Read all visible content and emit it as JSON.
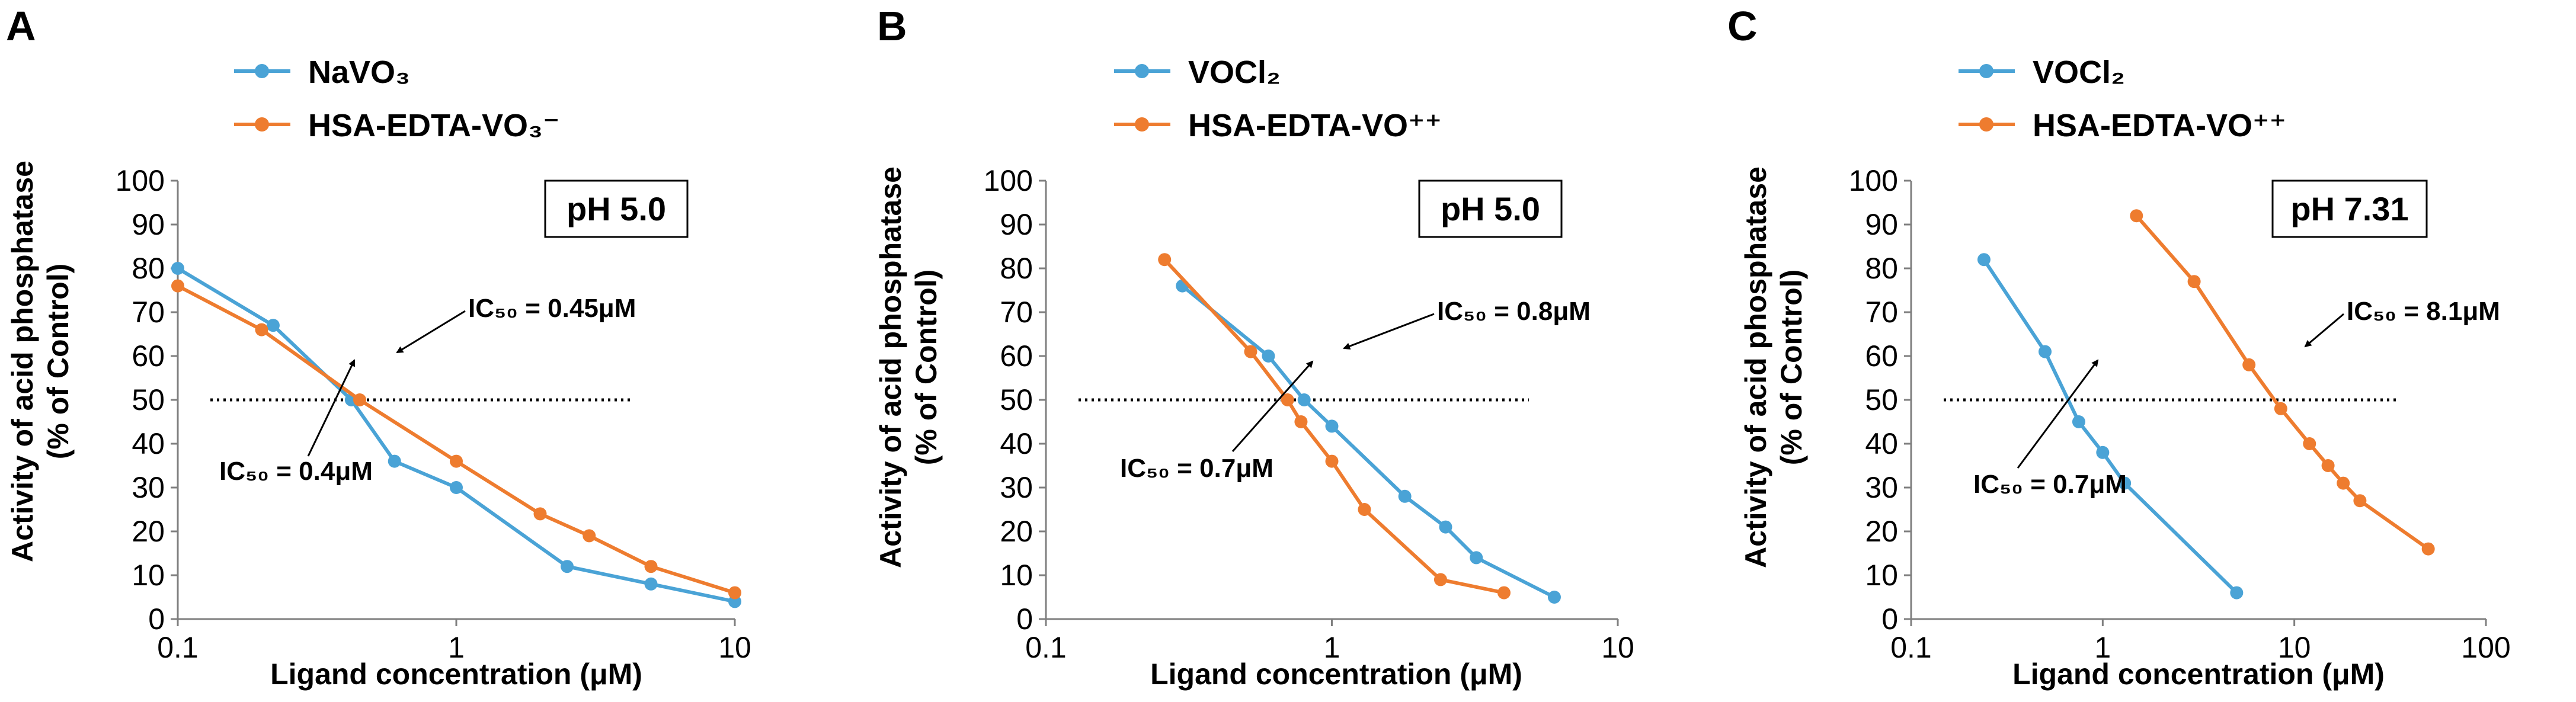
{
  "figure": {
    "colors": {
      "blue": "#4aa3d6",
      "orange": "#ee7c2f"
    }
  },
  "chart_data": [
    {
      "panel": "A",
      "type": "line",
      "xscale": "log",
      "xlim": [
        0.1,
        10
      ],
      "ylim": [
        0,
        100
      ],
      "xticks": [
        {
          "v": 0.1,
          "label": "0.1"
        },
        {
          "v": 1,
          "label": "1"
        },
        {
          "v": 10,
          "label": "10"
        }
      ],
      "yticks": [
        {
          "v": 0,
          "label": "0"
        },
        {
          "v": 10,
          "label": "10"
        },
        {
          "v": 20,
          "label": "20"
        },
        {
          "v": 30,
          "label": "30"
        },
        {
          "v": 40,
          "label": "40"
        },
        {
          "v": 50,
          "label": "50"
        },
        {
          "v": 60,
          "label": "60"
        },
        {
          "v": 70,
          "label": "70"
        },
        {
          "v": 80,
          "label": "80"
        },
        {
          "v": 90,
          "label": "90"
        },
        {
          "v": 100,
          "label": "100"
        }
      ],
      "xlabel": "Ligand concentration (μM)",
      "ylabel": [
        "Activity of acid phosphatase",
        "(% of Control)"
      ],
      "condition": "pH 5.0",
      "reference_line": 50,
      "grid": false,
      "legend_position": "top-left",
      "series": [
        {
          "name": "NaVO₃",
          "color": "blue",
          "x": [
            0.1,
            0.22,
            0.42,
            0.6,
            1,
            2.5,
            5,
            10
          ],
          "y": [
            80,
            67,
            50,
            36,
            30,
            12,
            8,
            4
          ]
        },
        {
          "name": "HSA-EDTA-VO₃⁻",
          "color": "orange",
          "x": [
            0.1,
            0.2,
            0.45,
            1,
            2,
            3,
            5,
            10
          ],
          "y": [
            76,
            66,
            50,
            36,
            24,
            19,
            12,
            6
          ]
        }
      ],
      "annotations": [
        {
          "text": "IC₅₀ = 0.45μM",
          "points_to": [
            0.45,
            50
          ]
        },
        {
          "text": "IC₅₀ = 0.4μM",
          "points_to": [
            0.4,
            50
          ]
        }
      ]
    },
    {
      "panel": "B",
      "type": "line",
      "xscale": "log",
      "xlim": [
        0.1,
        10
      ],
      "ylim": [
        0,
        100
      ],
      "xticks": [
        {
          "v": 0.1,
          "label": "0.1"
        },
        {
          "v": 1,
          "label": "1"
        },
        {
          "v": 10,
          "label": "10"
        }
      ],
      "yticks": [
        {
          "v": 0,
          "label": "0"
        },
        {
          "v": 10,
          "label": "10"
        },
        {
          "v": 20,
          "label": "20"
        },
        {
          "v": 30,
          "label": "30"
        },
        {
          "v": 40,
          "label": "40"
        },
        {
          "v": 50,
          "label": "50"
        },
        {
          "v": 60,
          "label": "60"
        },
        {
          "v": 70,
          "label": "70"
        },
        {
          "v": 80,
          "label": "80"
        },
        {
          "v": 90,
          "label": "90"
        },
        {
          "v": 100,
          "label": "100"
        }
      ],
      "xlabel": "Ligand concentration (μM)",
      "ylabel": [
        "Activity of acid phosphatase",
        "(% of Control)"
      ],
      "condition": "pH 5.0",
      "reference_line": 50,
      "grid": false,
      "legend_position": "top-left",
      "series": [
        {
          "name": "VOCl₂",
          "color": "blue",
          "x": [
            0.3,
            0.6,
            0.8,
            1,
            1.8,
            2.5,
            3.2,
            6
          ],
          "y": [
            76,
            60,
            50,
            44,
            28,
            21,
            14,
            5
          ]
        },
        {
          "name": "HSA-EDTA-VO⁺⁺",
          "color": "orange",
          "x": [
            0.26,
            0.52,
            0.7,
            0.78,
            1,
            1.3,
            2.4,
            4
          ],
          "y": [
            82,
            61,
            50,
            45,
            36,
            25,
            9,
            6
          ]
        }
      ],
      "annotations": [
        {
          "text": "IC₅₀ = 0.8μM",
          "points_to": [
            0.8,
            50
          ]
        },
        {
          "text": "IC₅₀ = 0.7μM",
          "points_to": [
            0.7,
            50
          ]
        }
      ]
    },
    {
      "panel": "C",
      "type": "line",
      "xscale": "log",
      "xlim": [
        0.1,
        100
      ],
      "ylim": [
        0,
        100
      ],
      "xticks": [
        {
          "v": 0.1,
          "label": "0.1"
        },
        {
          "v": 1,
          "label": "1"
        },
        {
          "v": 10,
          "label": "10"
        },
        {
          "v": 100,
          "label": "100"
        }
      ],
      "yticks": [
        {
          "v": 0,
          "label": "0"
        },
        {
          "v": 10,
          "label": "10"
        },
        {
          "v": 20,
          "label": "20"
        },
        {
          "v": 30,
          "label": "30"
        },
        {
          "v": 40,
          "label": "40"
        },
        {
          "v": 50,
          "label": "50"
        },
        {
          "v": 60,
          "label": "60"
        },
        {
          "v": 70,
          "label": "70"
        },
        {
          "v": 80,
          "label": "80"
        },
        {
          "v": 90,
          "label": "90"
        },
        {
          "v": 100,
          "label": "100"
        }
      ],
      "xlabel": "Ligand concentration (μM)",
      "ylabel": [
        "Activity of acid phosphatase",
        "(% of Control)"
      ],
      "condition": "pH 7.31",
      "reference_line": 50,
      "grid": false,
      "legend_position": "top-left",
      "series": [
        {
          "name": "VOCl₂",
          "color": "blue",
          "x": [
            0.24,
            0.5,
            0.75,
            1,
            1.3,
            5
          ],
          "y": [
            82,
            61,
            45,
            38,
            31,
            6
          ]
        },
        {
          "name": "HSA-EDTA-VO⁺⁺",
          "color": "orange",
          "x": [
            1.5,
            3,
            5.8,
            8.5,
            12,
            15,
            18,
            22,
            50
          ],
          "y": [
            92,
            77,
            58,
            48,
            40,
            35,
            31,
            27,
            16
          ]
        }
      ],
      "annotations": [
        {
          "text": "IC₅₀ = 8.1μM",
          "points_to": [
            8.1,
            50
          ]
        },
        {
          "text": "IC₅₀ = 0.7μM",
          "points_to": [
            0.7,
            50
          ]
        }
      ]
    }
  ]
}
